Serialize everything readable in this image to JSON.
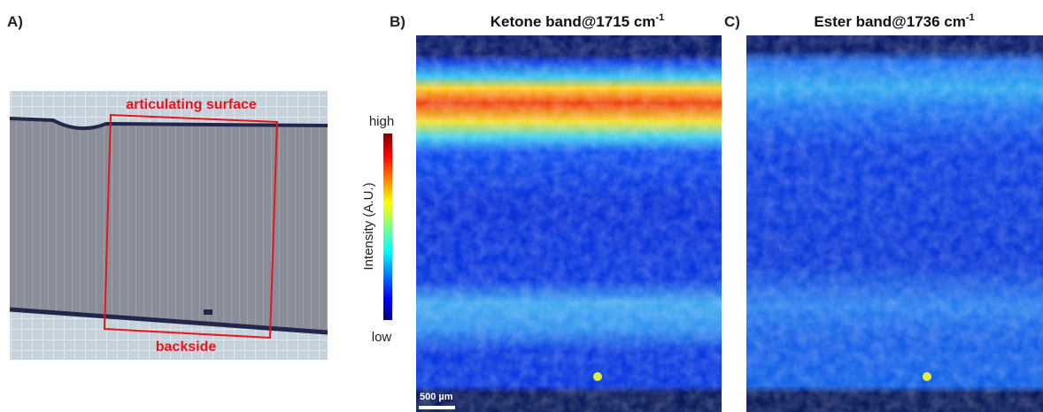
{
  "panels": [
    {
      "label": "A)",
      "annotations": [
        "articulating surface",
        "backside"
      ]
    },
    {
      "label": "B)",
      "title": "Ketone band@1715 cm",
      "title_sup": "-1",
      "scale_bar": "500 µm"
    },
    {
      "label": "C)",
      "title": "Ester band@1736 cm",
      "title_sup": "-1"
    }
  ],
  "colorbar": {
    "title": "Intensity (A.U.)",
    "high": "high",
    "low": "low"
  }
}
